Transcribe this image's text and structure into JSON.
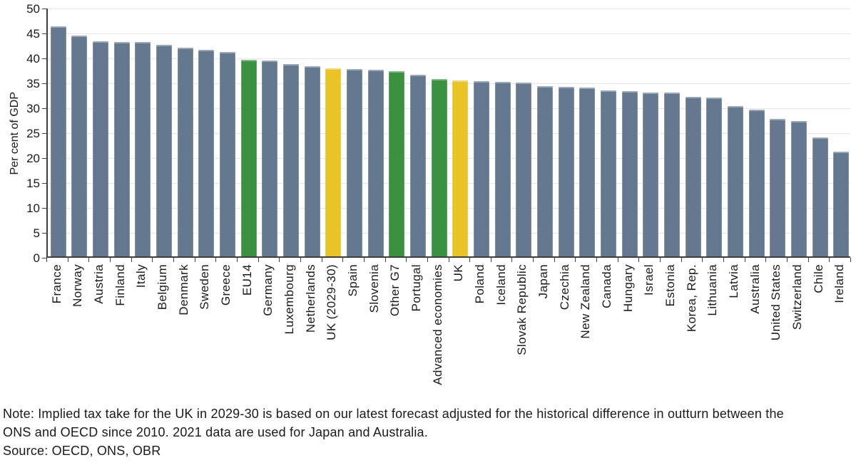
{
  "chart_data": {
    "type": "bar",
    "title": "",
    "xlabel": "",
    "ylabel": "Per cent of GDP",
    "ylim": [
      0,
      50
    ],
    "yticks": [
      0,
      5,
      10,
      15,
      20,
      25,
      30,
      35,
      40,
      45,
      50
    ],
    "grid": "horizontal",
    "legend_position": "none",
    "palette": {
      "default": "#64798F",
      "green": "#3A9240",
      "yellow": "#EAC327"
    },
    "bars": [
      {
        "label": "France",
        "value": 46.1,
        "color": "default"
      },
      {
        "label": "Norway",
        "value": 44.3,
        "color": "default"
      },
      {
        "label": "Austria",
        "value": 43.1,
        "color": "default"
      },
      {
        "label": "Finland",
        "value": 43.0,
        "color": "default"
      },
      {
        "label": "Italy",
        "value": 43.0,
        "color": "default"
      },
      {
        "label": "Belgium",
        "value": 42.5,
        "color": "default"
      },
      {
        "label": "Denmark",
        "value": 41.9,
        "color": "default"
      },
      {
        "label": "Sweden",
        "value": 41.4,
        "color": "default"
      },
      {
        "label": "Greece",
        "value": 41.0,
        "color": "default"
      },
      {
        "label": "EU14",
        "value": 39.5,
        "color": "green"
      },
      {
        "label": "Germany",
        "value": 39.3,
        "color": "default"
      },
      {
        "label": "Luxembourg",
        "value": 38.6,
        "color": "default"
      },
      {
        "label": "Netherlands",
        "value": 38.1,
        "color": "default"
      },
      {
        "label": "UK (2029-30)",
        "value": 37.7,
        "color": "yellow"
      },
      {
        "label": "Spain",
        "value": 37.6,
        "color": "default"
      },
      {
        "label": "Slovenia",
        "value": 37.4,
        "color": "default"
      },
      {
        "label": "Other G7",
        "value": 37.2,
        "color": "green"
      },
      {
        "label": "Portugal",
        "value": 36.4,
        "color": "default"
      },
      {
        "label": "Advanced economies",
        "value": 35.6,
        "color": "green"
      },
      {
        "label": "UK",
        "value": 35.3,
        "color": "yellow"
      },
      {
        "label": "Poland",
        "value": 35.2,
        "color": "default"
      },
      {
        "label": "Iceland",
        "value": 35.0,
        "color": "default"
      },
      {
        "label": "Slovak Republic",
        "value": 34.8,
        "color": "default"
      },
      {
        "label": "Japan",
        "value": 34.1,
        "color": "default"
      },
      {
        "label": "Czechia",
        "value": 34.0,
        "color": "default"
      },
      {
        "label": "New Zealand",
        "value": 33.8,
        "color": "default"
      },
      {
        "label": "Canada",
        "value": 33.3,
        "color": "default"
      },
      {
        "label": "Hungary",
        "value": 33.2,
        "color": "default"
      },
      {
        "label": "Israel",
        "value": 32.9,
        "color": "default"
      },
      {
        "label": "Estonia",
        "value": 32.8,
        "color": "default"
      },
      {
        "label": "Korea, Rep.",
        "value": 32.0,
        "color": "default"
      },
      {
        "label": "Lithuania",
        "value": 31.8,
        "color": "default"
      },
      {
        "label": "Latvia",
        "value": 30.2,
        "color": "default"
      },
      {
        "label": "Australia",
        "value": 29.5,
        "color": "default"
      },
      {
        "label": "United States",
        "value": 27.6,
        "color": "default"
      },
      {
        "label": "Switzerland",
        "value": 27.1,
        "color": "default"
      },
      {
        "label": "Chile",
        "value": 23.9,
        "color": "default"
      },
      {
        "label": "Ireland",
        "value": 21.0,
        "color": "default"
      }
    ]
  },
  "note": {
    "line1": "Note: Implied tax take for the UK in 2029-30 is based on our latest forecast adjusted for the historical difference in outturn between the",
    "line2": "ONS and OECD since 2010. 2021 data are used for Japan and Australia.",
    "source": "Source: OECD, ONS, OBR"
  }
}
